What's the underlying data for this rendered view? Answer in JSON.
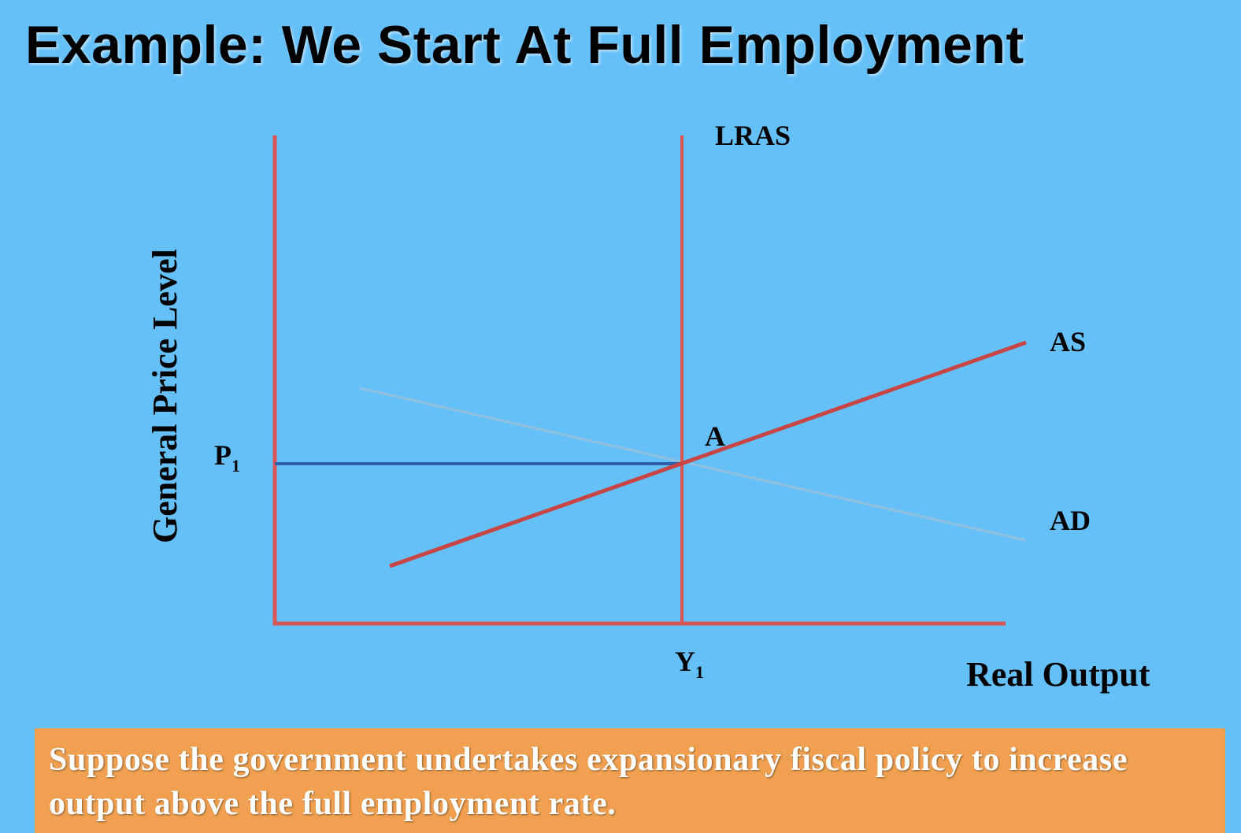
{
  "title": "Example: We Start At Full Employment",
  "diagram": {
    "y_axis_label": "General Price Level",
    "x_axis_label": "Real Output",
    "lras_label": "LRAS",
    "as_label": "AS",
    "ad_label": "AD",
    "equilibrium_label": "A",
    "price_label_main": "P",
    "price_label_sub": "1",
    "output_label_main": "Y",
    "output_label_sub": "1",
    "colors": {
      "axes": "#d95555",
      "as_curve": "#c84545",
      "ad_curve": "#8fc0e0",
      "price_guide": "#2e5fa8"
    }
  },
  "note": {
    "text": "Suppose the government undertakes expansionary fiscal policy to increase output above the full employment rate."
  }
}
